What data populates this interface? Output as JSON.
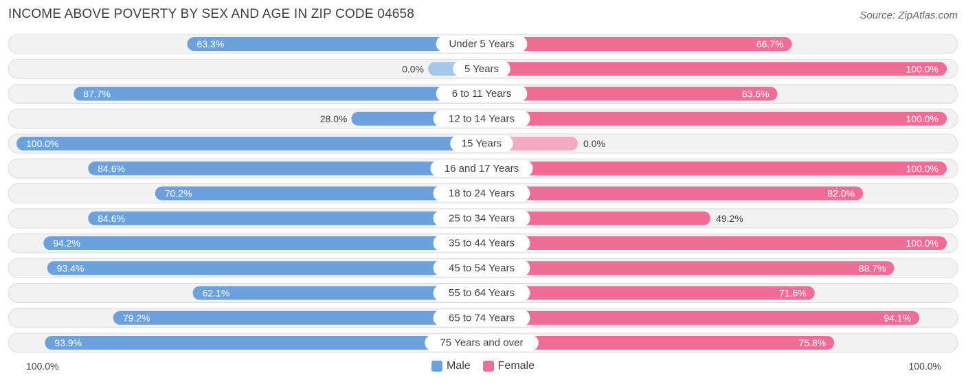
{
  "title": "INCOME ABOVE POVERTY BY SEX AND AGE IN ZIP CODE 04658",
  "source": "Source: ZipAtlas.com",
  "axis": {
    "left_label": "100.0%",
    "right_label": "100.0%"
  },
  "legend": {
    "male_label": "Male",
    "female_label": "Female"
  },
  "colors": {
    "male": "#6ba1dd",
    "male_light": "#a7c7ea",
    "female": "#f06d98",
    "female_light": "#f5a9c3",
    "row_bg": "#f2f2f2",
    "row_border": "#dddddd"
  },
  "chart_data": {
    "type": "bar",
    "orientation": "horizontal-diverging",
    "title": "INCOME ABOVE POVERTY BY SEX AND AGE IN ZIP CODE 04658",
    "categories": [
      "Under 5 Years",
      "5 Years",
      "6 to 11 Years",
      "12 to 14 Years",
      "15 Years",
      "16 and 17 Years",
      "18 to 24 Years",
      "25 to 34 Years",
      "35 to 44 Years",
      "45 to 54 Years",
      "55 to 64 Years",
      "65 to 74 Years",
      "75 Years and over"
    ],
    "series": [
      {
        "name": "Male",
        "values": [
          63.3,
          0.0,
          87.7,
          28.0,
          100.0,
          84.6,
          70.2,
          84.6,
          94.2,
          93.4,
          62.1,
          79.2,
          93.9
        ],
        "labels": [
          "63.3%",
          "0.0%",
          "87.7%",
          "28.0%",
          "100.0%",
          "84.6%",
          "70.2%",
          "84.6%",
          "94.2%",
          "93.4%",
          "62.1%",
          "79.2%",
          "93.9%"
        ]
      },
      {
        "name": "Female",
        "values": [
          66.7,
          100.0,
          63.6,
          100.0,
          0.0,
          100.0,
          82.0,
          49.2,
          100.0,
          88.7,
          71.6,
          94.1,
          75.8
        ],
        "labels": [
          "66.7%",
          "100.0%",
          "63.6%",
          "100.0%",
          "0.0%",
          "100.0%",
          "82.0%",
          "49.2%",
          "100.0%",
          "88.7%",
          "71.6%",
          "94.1%",
          "75.8%"
        ]
      }
    ],
    "xlim": [
      0,
      100
    ],
    "legend_position": "bottom-center"
  }
}
